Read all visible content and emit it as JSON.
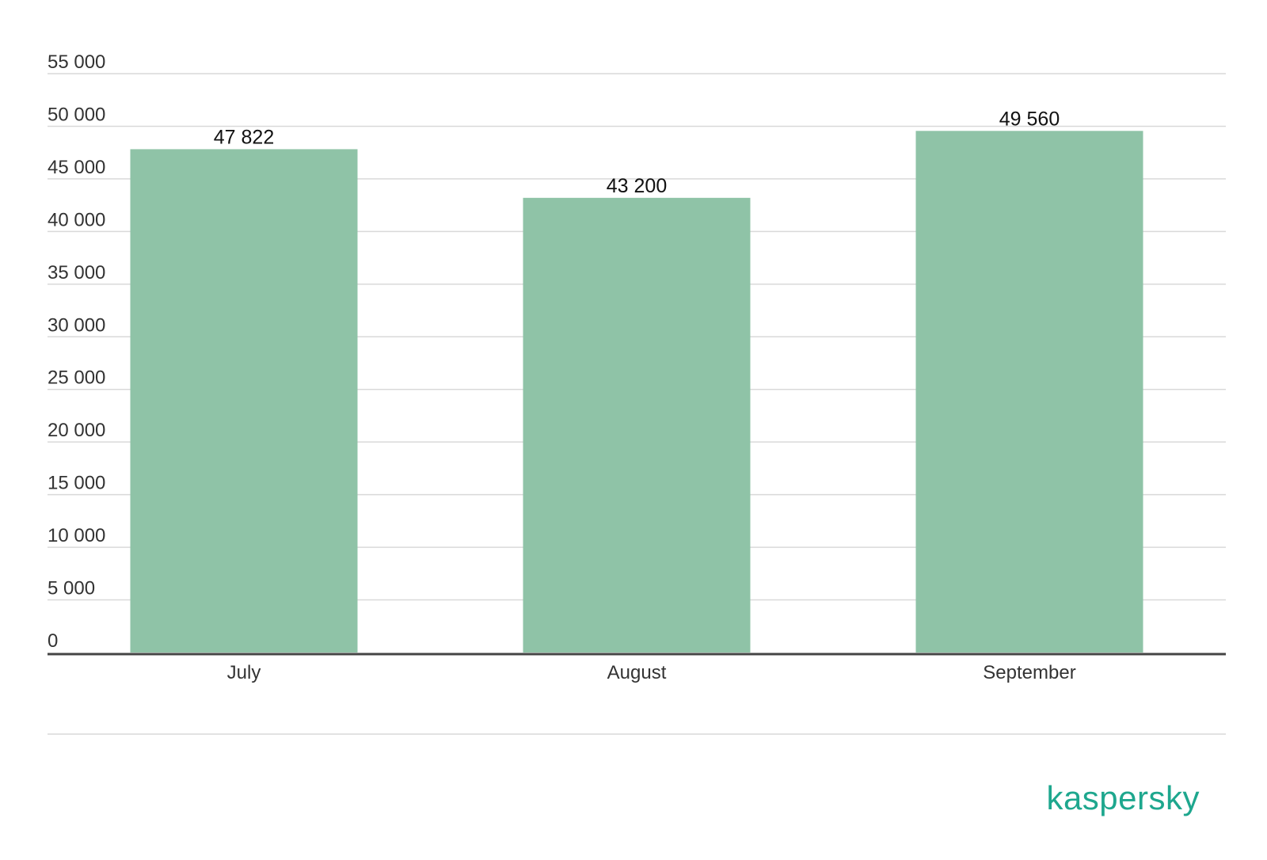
{
  "brand": {
    "logo_text": "kaspersky",
    "color": "#1ea78e"
  },
  "colors": {
    "bar": "#8fc3a7",
    "grid": "#d9d9d9",
    "axis": "#444444"
  },
  "chart_data": {
    "type": "bar",
    "categories": [
      "July",
      "August",
      "September"
    ],
    "values": [
      47822,
      43200,
      49560
    ],
    "value_labels": [
      "47 822",
      "43 200",
      "49 560"
    ],
    "y_ticks": [
      0,
      5000,
      10000,
      15000,
      20000,
      25000,
      30000,
      35000,
      40000,
      45000,
      50000,
      55000
    ],
    "y_tick_labels": [
      "0",
      "5 000",
      "10 000",
      "15 000",
      "20 000",
      "25 000",
      "30 000",
      "35 000",
      "40 000",
      "45 000",
      "50 000",
      "55 000"
    ],
    "ylim": [
      0,
      55000
    ],
    "grid": true,
    "legend": "none"
  }
}
